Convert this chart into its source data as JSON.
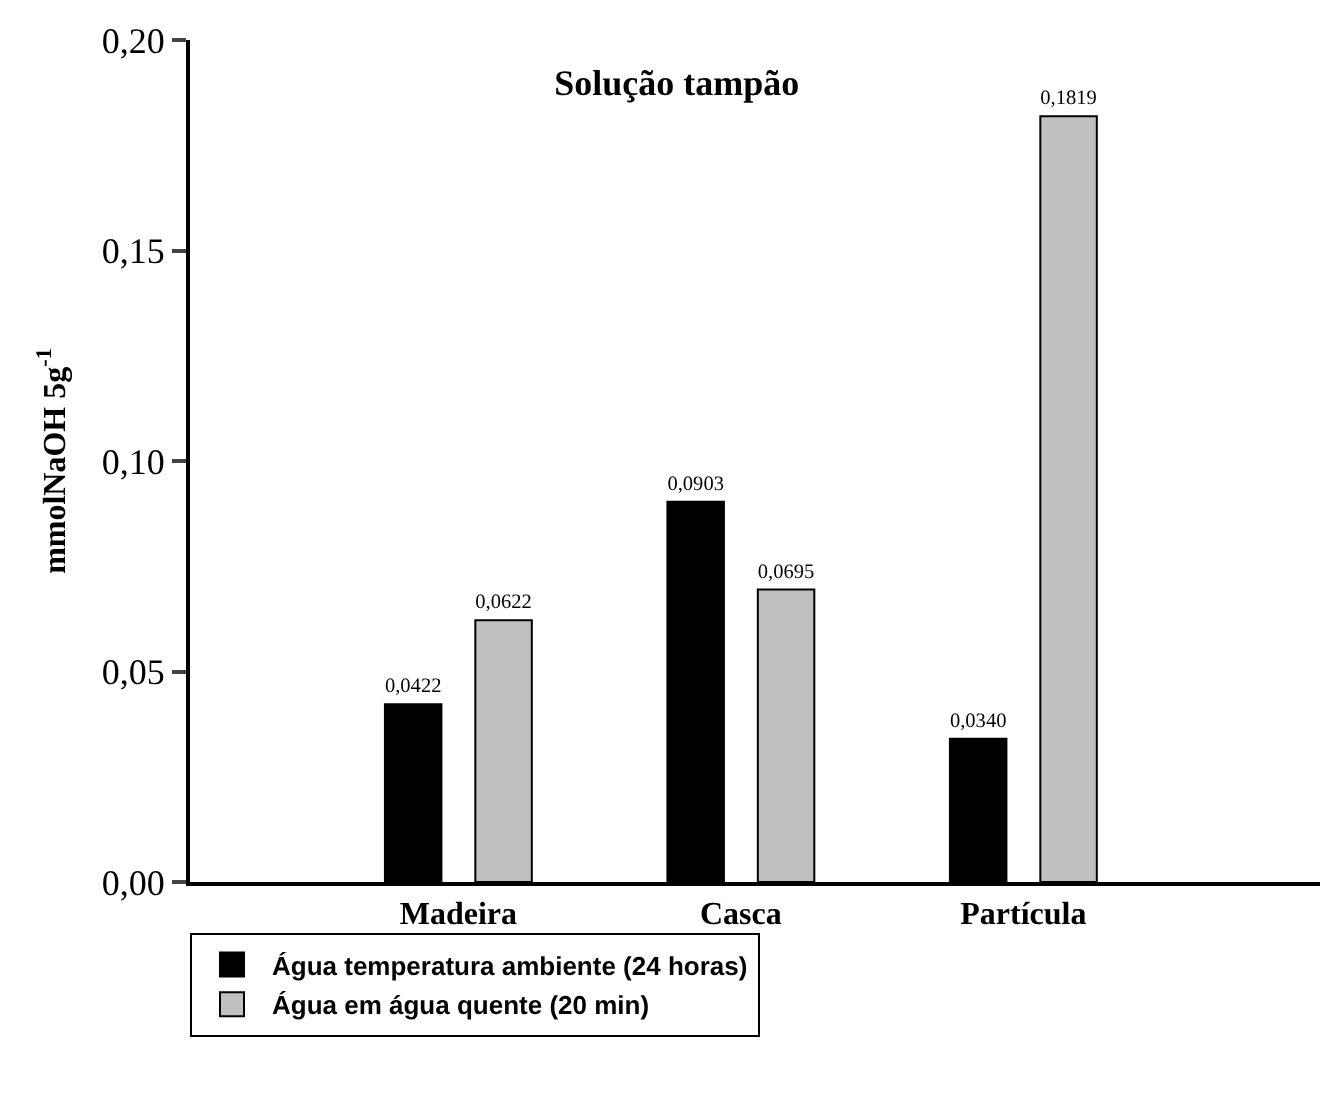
{
  "chart_data": {
    "type": "bar",
    "title": "Solução tampão",
    "ylabel": "mmolNaOH 5g$^{-1}$",
    "categories": [
      "Madeira",
      "Casca",
      "Partícula"
    ],
    "series": [
      {
        "name": "Água temperatura ambiente (24 horas)",
        "color": "#000000",
        "values": [
          0.0422,
          0.0903,
          0.034
        ]
      },
      {
        "name": "Água em água quente (20 min)",
        "color": "#c0c0c0",
        "values": [
          0.0622,
          0.0695,
          0.1819
        ]
      }
    ],
    "value_labels": [
      [
        "0,0422",
        "0,0903",
        "0,0340"
      ],
      [
        "0,0622",
        "0,0695",
        "0,1819"
      ]
    ],
    "ylim": [
      0,
      0.2
    ],
    "yticks": [
      {
        "value": 0,
        "label": "0,00"
      },
      {
        "value": 0.05,
        "label": "0,05"
      },
      {
        "value": 0.1,
        "label": "0,10"
      },
      {
        "value": 0.15,
        "label": "0,15"
      },
      {
        "value": 0.2,
        "label": "0,20"
      }
    ],
    "grid": false,
    "legend": "bottom left"
  }
}
